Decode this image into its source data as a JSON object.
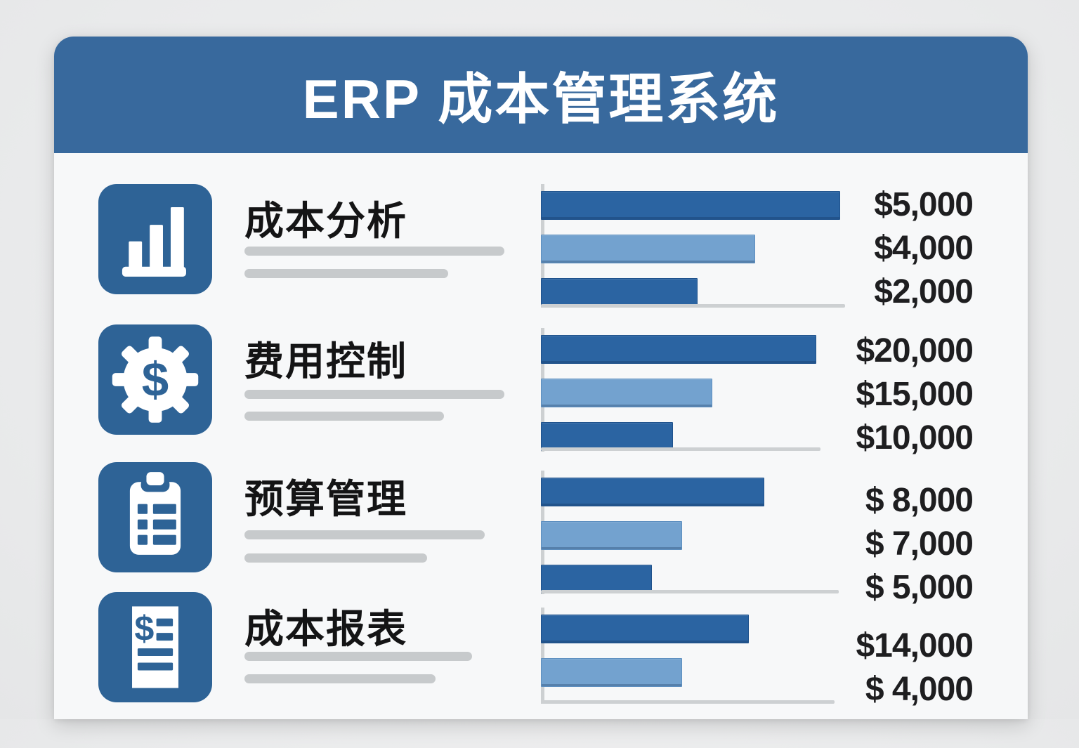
{
  "header": {
    "title": "ERP 成本管理系统"
  },
  "colors": {
    "page_bg": "#ebecec",
    "card_bg": "#f7f8f9",
    "header_bg": "#38699d",
    "icon_bg": "#2e6396",
    "bar_dark": "#2b64a2",
    "bar_light": "#73a2cf",
    "deco_line_gray": "#c7cacc",
    "axis_gray": "#cdd0d2",
    "title_text": "#141415",
    "value_text": "#1e1e20",
    "header_text": "#ffffff"
  },
  "sections": [
    {
      "title": "成本分析",
      "icon": "bar-chart-icon",
      "bars": [
        {
          "label": "$5,000",
          "pct": 98,
          "tone": "dark"
        },
        {
          "label": "$4,000",
          "pct": 70,
          "tone": "light"
        },
        {
          "label": "$2,000",
          "pct": 51,
          "tone": "dark"
        }
      ]
    },
    {
      "title": "费用控制",
      "icon": "gear-dollar-icon",
      "bars": [
        {
          "label": "$20,000",
          "pct": 90,
          "tone": "dark"
        },
        {
          "label": "$15,000",
          "pct": 56,
          "tone": "light"
        },
        {
          "label": "$10,000",
          "pct": 43,
          "tone": "dark"
        }
      ]
    },
    {
      "title": "预算管理",
      "icon": "clipboard-icon",
      "bars": [
        {
          "label": "$ 8,000",
          "pct": 73,
          "tone": "dark"
        },
        {
          "label": "$ 7,000",
          "pct": 46,
          "tone": "light"
        },
        {
          "label": "$ 5,000",
          "pct": 36,
          "tone": "dark"
        }
      ]
    },
    {
      "title": "成本报表",
      "icon": "report-dollar-icon",
      "bars": [
        {
          "label": "$14,000",
          "pct": 68,
          "tone": "dark"
        },
        {
          "label": "$ 4,000",
          "pct": 46,
          "tone": "light"
        }
      ]
    }
  ],
  "chart_data": [
    {
      "type": "bar",
      "orientation": "horizontal",
      "title": "成本分析",
      "values": [
        5000,
        4000,
        2000
      ],
      "value_labels": [
        "$5,000",
        "$4,000",
        "$2,000"
      ],
      "bar_tones": [
        "dark",
        "light",
        "dark"
      ],
      "grid": false,
      "legend": false
    },
    {
      "type": "bar",
      "orientation": "horizontal",
      "title": "费用控制",
      "values": [
        20000,
        15000,
        10000
      ],
      "value_labels": [
        "$20,000",
        "$15,000",
        "$10,000"
      ],
      "bar_tones": [
        "dark",
        "light",
        "dark"
      ],
      "grid": false,
      "legend": false
    },
    {
      "type": "bar",
      "orientation": "horizontal",
      "title": "预算管理",
      "values": [
        8000,
        7000,
        5000
      ],
      "value_labels": [
        "$ 8,000",
        "$ 7,000",
        "$ 5,000"
      ],
      "bar_tones": [
        "dark",
        "light",
        "dark"
      ],
      "grid": false,
      "legend": false
    },
    {
      "type": "bar",
      "orientation": "horizontal",
      "title": "成本报表",
      "values": [
        14000,
        4000
      ],
      "value_labels": [
        "$14,000",
        "$ 4,000"
      ],
      "bar_tones": [
        "dark",
        "light"
      ],
      "grid": false,
      "legend": false
    }
  ]
}
